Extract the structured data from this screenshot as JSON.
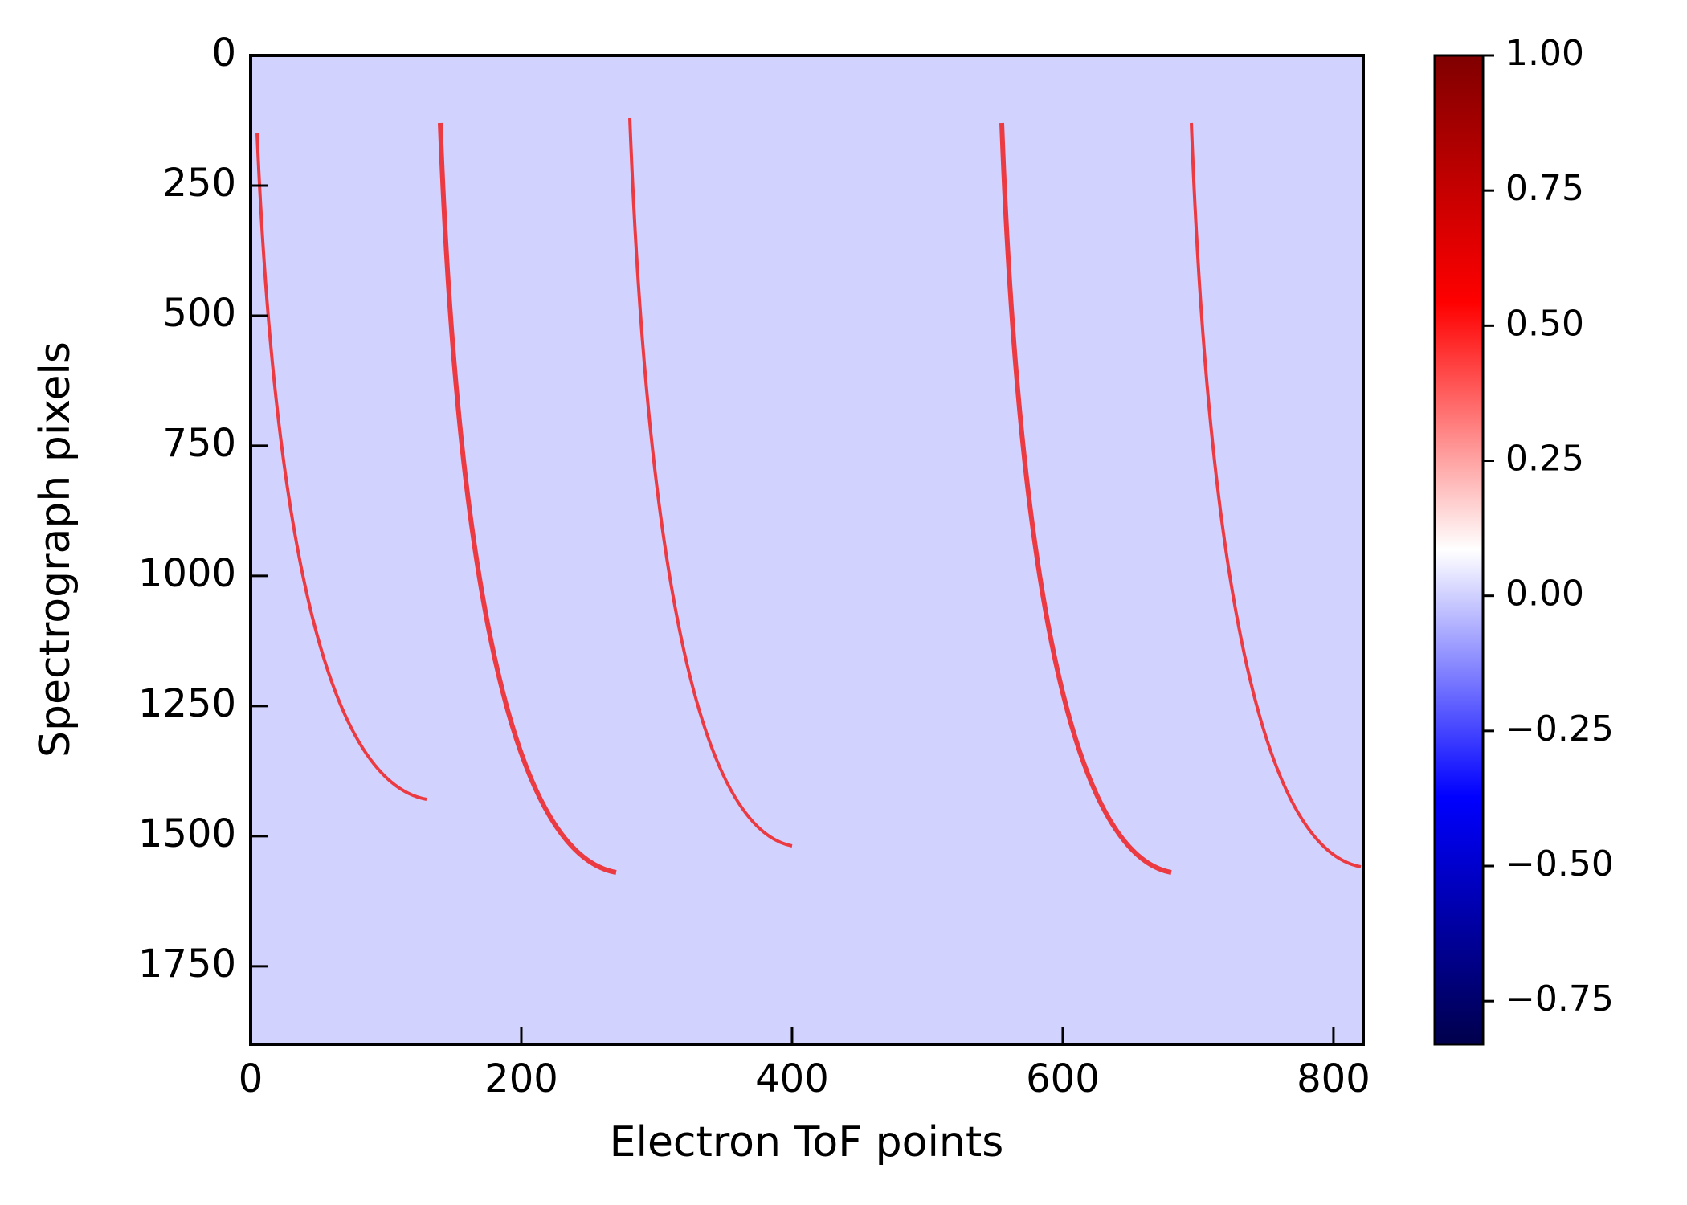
{
  "chart_data": {
    "type": "heatmap",
    "x_label": "Electron ToF points",
    "y_label": "Spectrograph pixels",
    "xlim": [
      0,
      822
    ],
    "xticks": [
      0,
      200,
      400,
      600,
      800
    ],
    "ylim": [
      1900,
      0
    ],
    "yticks": [
      0,
      250,
      500,
      750,
      1000,
      1250,
      1500,
      1750
    ],
    "clim": [
      -0.83,
      1.0
    ],
    "cticks": [
      {
        "value": 1.0,
        "label": "1.00"
      },
      {
        "value": 0.75,
        "label": "0.75"
      },
      {
        "value": 0.5,
        "label": "0.50"
      },
      {
        "value": 0.25,
        "label": "0.25"
      },
      {
        "value": 0.0,
        "label": "0.00"
      },
      {
        "value": -0.25,
        "label": "−0.25"
      },
      {
        "value": -0.5,
        "label": "−0.50"
      },
      {
        "value": -0.75,
        "label": "−0.75"
      }
    ],
    "colormap": [
      "#00004c",
      "#0000ff",
      "#ffffff",
      "#ff0000",
      "#800000"
    ]
  }
}
